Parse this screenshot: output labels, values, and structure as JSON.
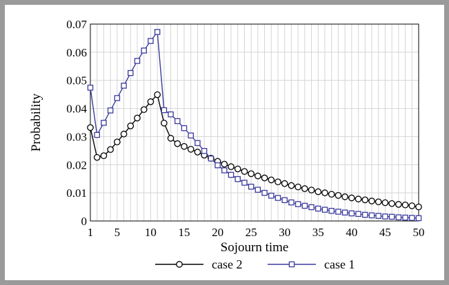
{
  "chart_data": {
    "type": "line",
    "xlabel": "Sojourn time",
    "ylabel": "Probability",
    "xlim": [
      1,
      50
    ],
    "ylim": [
      0,
      0.07
    ],
    "x_ticks": [
      1,
      5,
      10,
      15,
      20,
      25,
      30,
      35,
      40,
      45,
      50
    ],
    "y_ticks": [
      0,
      0.01,
      0.02,
      0.03,
      0.04,
      0.05,
      0.06,
      0.07
    ],
    "y_tick_labels": [
      "0",
      "0.01",
      "0.02",
      "0.03",
      "0.04",
      "0.05",
      "0.06",
      "0.07"
    ],
    "grid": true,
    "legend_position": "bottom",
    "x": [
      1,
      2,
      3,
      4,
      5,
      6,
      7,
      8,
      9,
      10,
      11,
      12,
      13,
      14,
      15,
      16,
      17,
      18,
      19,
      20,
      21,
      22,
      23,
      24,
      25,
      26,
      27,
      28,
      29,
      30,
      31,
      32,
      33,
      34,
      35,
      36,
      37,
      38,
      39,
      40,
      41,
      42,
      43,
      44,
      45,
      46,
      47,
      48,
      49,
      50
    ],
    "series": [
      {
        "name": "case 2",
        "color": "#000000",
        "marker": "circle",
        "values": [
          0.0332,
          0.0226,
          0.0232,
          0.0254,
          0.0281,
          0.0309,
          0.0338,
          0.0366,
          0.0396,
          0.0424,
          0.0449,
          0.0348,
          0.0294,
          0.0275,
          0.0265,
          0.0255,
          0.0245,
          0.0234,
          0.0223,
          0.0212,
          0.0202,
          0.0193,
          0.0185,
          0.0176,
          0.0168,
          0.016,
          0.0153,
          0.0146,
          0.0139,
          0.0133,
          0.0126,
          0.0121,
          0.0115,
          0.011,
          0.0104,
          0.01,
          0.0095,
          0.0091,
          0.0086,
          0.0082,
          0.0078,
          0.0075,
          0.0071,
          0.0068,
          0.0065,
          0.0062,
          0.0059,
          0.0057,
          0.0054,
          0.005
        ]
      },
      {
        "name": "case 1",
        "color": "#3a3a9c",
        "marker": "square",
        "values": [
          0.0474,
          0.0306,
          0.0349,
          0.0393,
          0.0437,
          0.0481,
          0.0526,
          0.0569,
          0.0606,
          0.064,
          0.0672,
          0.0394,
          0.0379,
          0.0355,
          0.033,
          0.0304,
          0.0277,
          0.0249,
          0.0222,
          0.0198,
          0.018,
          0.0164,
          0.0149,
          0.0136,
          0.0122,
          0.0111,
          0.01,
          0.009,
          0.0082,
          0.0074,
          0.0066,
          0.006,
          0.0054,
          0.0049,
          0.0044,
          0.004,
          0.0036,
          0.0033,
          0.003,
          0.0027,
          0.0025,
          0.0022,
          0.002,
          0.0018,
          0.0016,
          0.0015,
          0.0013,
          0.0012,
          0.0011,
          0.001
        ]
      }
    ],
    "legend": [
      {
        "label": "case 2",
        "series": 0
      },
      {
        "label": "case 1",
        "series": 1
      }
    ]
  }
}
